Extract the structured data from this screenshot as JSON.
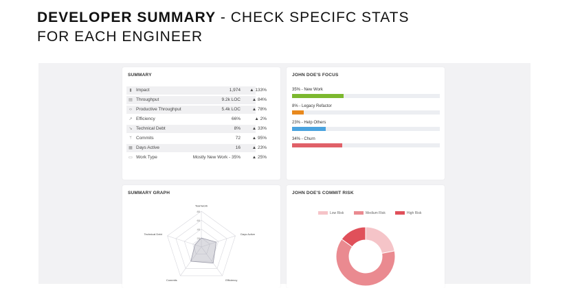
{
  "slide": {
    "title_bold": "DEVELOPER SUMMARY",
    "title_rest": " - CHECK SPECIFC STATS",
    "title_line2": "FOR EACH ENGINEER"
  },
  "summary": {
    "title": "SUMMARY",
    "rows": [
      {
        "icon": "bar-chart-icon",
        "glyph": "▮",
        "label": "Impact",
        "value": "1,974",
        "delta": "▲ 133%"
      },
      {
        "icon": "document-icon",
        "glyph": "▤",
        "label": "Throughput",
        "value": "9.2k LOC",
        "delta": "▲ 84%"
      },
      {
        "icon": "code-icon",
        "glyph": "‹›",
        "label": "Productive Throughput",
        "value": "5.4k LOC",
        "delta": "▲ 78%"
      },
      {
        "icon": "trend-icon",
        "glyph": "↗",
        "label": "Efficiency",
        "value": "66%",
        "delta": "▲ 2%"
      },
      {
        "icon": "debt-icon",
        "glyph": "↘",
        "label": "Technical Debt",
        "value": "8%",
        "delta": "▲ 33%"
      },
      {
        "icon": "commit-icon",
        "glyph": "ᛘ",
        "label": "Commits",
        "value": "72",
        "delta": "▲ 95%"
      },
      {
        "icon": "calendar-icon",
        "glyph": "▦",
        "label": "Days Active",
        "value": "16",
        "delta": "▲ 23%"
      },
      {
        "icon": "folder-icon",
        "glyph": "▭",
        "label": "Work Type",
        "value": "Mostly New Work - 35%",
        "delta": "▲ 25%"
      }
    ]
  },
  "focus": {
    "title": "JOHN DOE'S FOCUS",
    "items": [
      {
        "label": "35% - New Work",
        "percent": 35,
        "color": "#7cb82f"
      },
      {
        "label": "8% - Legacy Refactor",
        "percent": 8,
        "color": "#e8891d"
      },
      {
        "label": "23% - Help Others",
        "percent": 23,
        "color": "#4aa3df"
      },
      {
        "label": "34% - Churn",
        "percent": 34,
        "color": "#e06068"
      }
    ]
  },
  "graph": {
    "title": "SUMMARY GRAPH",
    "axes": [
      "Teamwork",
      "Days Active",
      "Efficiency",
      "Commits",
      "Technical Debt"
    ],
    "ticks": [
      "80",
      "60",
      "40",
      "20"
    ],
    "values": [
      20,
      35,
      45,
      40,
      15
    ],
    "max": 80,
    "color": "#9a9aa8"
  },
  "risk": {
    "title": "JOHN DOE'S COMMIT RISK",
    "legend": [
      {
        "label": "Low Risk",
        "color": "#f5c4c8"
      },
      {
        "label": "Medium Risk",
        "color": "#ea8a90"
      },
      {
        "label": "High Risk",
        "color": "#e0505a"
      }
    ],
    "slices": [
      {
        "name": "Low Risk",
        "value": 22,
        "color": "#f5c4c8"
      },
      {
        "name": "Medium Risk",
        "value": 63,
        "color": "#ea8a90"
      },
      {
        "name": "High Risk",
        "value": 15,
        "color": "#e0505a"
      }
    ]
  }
}
